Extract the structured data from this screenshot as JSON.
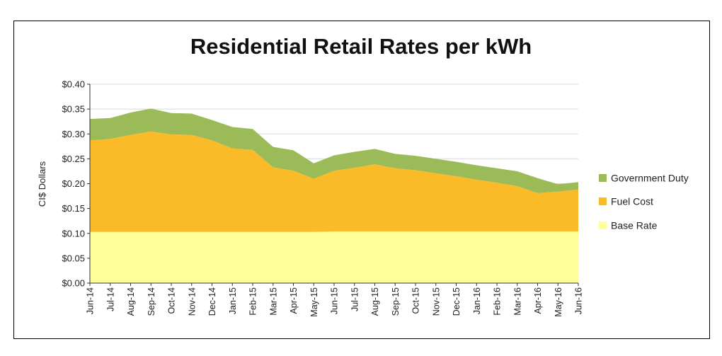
{
  "chart_data": {
    "type": "area",
    "stacked": true,
    "title": "Residential Retail Rates per kWh",
    "xlabel": "",
    "ylabel": "CI$ Dollars",
    "ylim": [
      0,
      0.4
    ],
    "ytick_labels": [
      "$0.00",
      "$0.05",
      "$0.10",
      "$0.15",
      "$0.20",
      "$0.25",
      "$0.30",
      "$0.35",
      "$0.40"
    ],
    "ytick_values": [
      0,
      0.05,
      0.1,
      0.15,
      0.2,
      0.25,
      0.3,
      0.35,
      0.4
    ],
    "grid": true,
    "legend_position": "right",
    "categories": [
      "Jun-14",
      "Jul-14",
      "Aug-14",
      "Sep-14",
      "Oct-14",
      "Nov-14",
      "Dec-14",
      "Jan-15",
      "Feb-15",
      "Mar-15",
      "Apr-15",
      "May-15",
      "Jun-15",
      "Jul-15",
      "Aug-15",
      "Sep-15",
      "Oct-15",
      "Nov-15",
      "Dec-15",
      "Jan-16",
      "Feb-16",
      "Mar-16",
      "Apr-16",
      "May-16",
      "Jun-16"
    ],
    "series": [
      {
        "name": "Base Rate",
        "color": "#FFFF99",
        "values": [
          0.103,
          0.103,
          0.103,
          0.103,
          0.103,
          0.103,
          0.103,
          0.103,
          0.103,
          0.103,
          0.103,
          0.103,
          0.104,
          0.104,
          0.104,
          0.104,
          0.104,
          0.104,
          0.104,
          0.104,
          0.104,
          0.104,
          0.104,
          0.104,
          0.104
        ]
      },
      {
        "name": "Fuel Cost",
        "color": "#FBBA27",
        "values": [
          0.184,
          0.187,
          0.195,
          0.202,
          0.196,
          0.195,
          0.184,
          0.168,
          0.165,
          0.13,
          0.123,
          0.107,
          0.122,
          0.128,
          0.135,
          0.127,
          0.123,
          0.117,
          0.111,
          0.104,
          0.098,
          0.091,
          0.077,
          0.08,
          0.084
        ]
      },
      {
        "name": "Government Duty",
        "color": "#9BBB59",
        "values": [
          0.043,
          0.042,
          0.045,
          0.046,
          0.043,
          0.043,
          0.041,
          0.043,
          0.042,
          0.041,
          0.041,
          0.031,
          0.031,
          0.032,
          0.031,
          0.029,
          0.029,
          0.029,
          0.029,
          0.029,
          0.029,
          0.03,
          0.03,
          0.015,
          0.015
        ]
      }
    ]
  }
}
